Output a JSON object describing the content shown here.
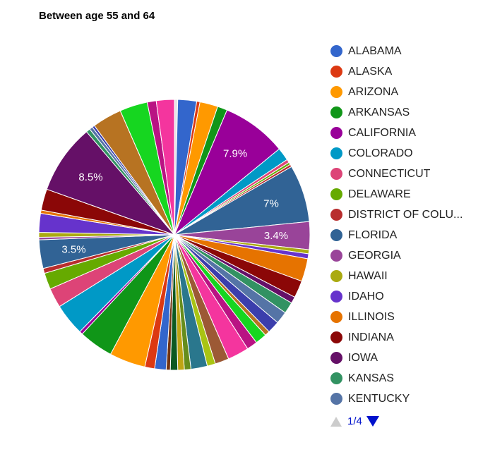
{
  "chart_data": {
    "type": "pie",
    "title": "Between age 55 and 64",
    "start_at": "12 o'clock, clockwise",
    "slices": [
      {
        "color": "#e6e6e6",
        "value": 0.4
      },
      {
        "color": "#3366cc",
        "value": 2.3
      },
      {
        "color": "#dc3912",
        "value": 0.4
      },
      {
        "color": "#ff9900",
        "value": 2.2
      },
      {
        "color": "#109618",
        "value": 1.2
      },
      {
        "color": "#990099",
        "value": 7.9,
        "label": "7.9%"
      },
      {
        "color": "#0099c6",
        "value": 1.6
      },
      {
        "color": "#dd4477",
        "value": 0.4
      },
      {
        "color": "#66aa00",
        "value": 0.3
      },
      {
        "color": "#b82e2e",
        "value": 0.3
      },
      {
        "color": "#316395",
        "value": 7.0,
        "label": "7%"
      },
      {
        "color": "#994499",
        "value": 3.4,
        "label": "3.4%"
      },
      {
        "color": "#aaaa11",
        "value": 0.5
      },
      {
        "color": "#6633cc",
        "value": 0.6
      },
      {
        "color": "#e67300",
        "value": 2.8
      },
      {
        "color": "#8b0707",
        "value": 2.1
      },
      {
        "color": "#651067",
        "value": 0.8
      },
      {
        "color": "#329262",
        "value": 1.4
      },
      {
        "color": "#5574a6",
        "value": 1.5
      },
      {
        "color": "#3b3eac",
        "value": 1.5
      },
      {
        "color": "#b77322",
        "value": 0.6
      },
      {
        "color": "#16d620",
        "value": 1.4
      },
      {
        "color": "#b91383",
        "value": 1.3
      },
      {
        "color": "#f4359e",
        "value": 2.6
      },
      {
        "color": "#9c5935",
        "value": 1.7
      },
      {
        "color": "#a9c413",
        "value": 1.0
      },
      {
        "color": "#2a778d",
        "value": 2.0
      },
      {
        "color": "#668d1c",
        "value": 0.8
      },
      {
        "color": "#bea413",
        "value": 0.8
      },
      {
        "color": "#0c5922",
        "value": 0.9
      },
      {
        "color": "#743411",
        "value": 0.5
      },
      {
        "color": "#3366cc",
        "value": 1.4
      },
      {
        "color": "#dc3912",
        "value": 1.2
      },
      {
        "color": "#ff9900",
        "value": 4.4
      },
      {
        "color": "#109618",
        "value": 4.2
      },
      {
        "color": "#990099",
        "value": 0.4
      },
      {
        "color": "#0099c6",
        "value": 3.9
      },
      {
        "color": "#dd4477",
        "value": 2.4
      },
      {
        "color": "#66aa00",
        "value": 2.0
      },
      {
        "color": "#b82e2e",
        "value": 0.6
      },
      {
        "color": "#316395",
        "value": 3.5,
        "label": "3.5%"
      },
      {
        "color": "#994499",
        "value": 0.3
      },
      {
        "color": "#aaaa11",
        "value": 0.6
      },
      {
        "color": "#6633cc",
        "value": 2.3
      },
      {
        "color": "#e67300",
        "value": 0.4
      },
      {
        "color": "#8b0707",
        "value": 2.6
      },
      {
        "color": "#651067",
        "value": 8.5,
        "label": "8.5%"
      },
      {
        "color": "#329262",
        "value": 0.5
      },
      {
        "color": "#5574a6",
        "value": 0.4
      },
      {
        "color": "#3b3eac",
        "value": 0.3
      },
      {
        "color": "#b77322",
        "value": 3.6
      },
      {
        "color": "#16d620",
        "value": 3.4
      },
      {
        "color": "#b91383",
        "value": 1.1
      },
      {
        "color": "#f4359e",
        "value": 2.2
      }
    ],
    "legend": {
      "position": "right",
      "entries": [
        {
          "label": "ALABAMA",
          "color": "#3366cc"
        },
        {
          "label": "ALASKA",
          "color": "#dc3912"
        },
        {
          "label": "ARIZONA",
          "color": "#ff9900"
        },
        {
          "label": "ARKANSAS",
          "color": "#109618"
        },
        {
          "label": "CALIFORNIA",
          "color": "#990099"
        },
        {
          "label": "COLORADO",
          "color": "#0099c6"
        },
        {
          "label": "CONNECTICUT",
          "color": "#dd4477"
        },
        {
          "label": "DELAWARE",
          "color": "#66aa00"
        },
        {
          "label": "DISTRICT OF COLU...",
          "color": "#b82e2e"
        },
        {
          "label": "FLORIDA",
          "color": "#316395"
        },
        {
          "label": "GEORGIA",
          "color": "#994499"
        },
        {
          "label": "HAWAII",
          "color": "#aaaa11"
        },
        {
          "label": "IDAHO",
          "color": "#6633cc"
        },
        {
          "label": "ILLINOIS",
          "color": "#e67300"
        },
        {
          "label": "INDIANA",
          "color": "#8b0707"
        },
        {
          "label": "IOWA",
          "color": "#651067"
        },
        {
          "label": "KANSAS",
          "color": "#329262"
        },
        {
          "label": "KENTUCKY",
          "color": "#5574a6"
        }
      ],
      "pager": {
        "text": "1/4"
      }
    }
  }
}
